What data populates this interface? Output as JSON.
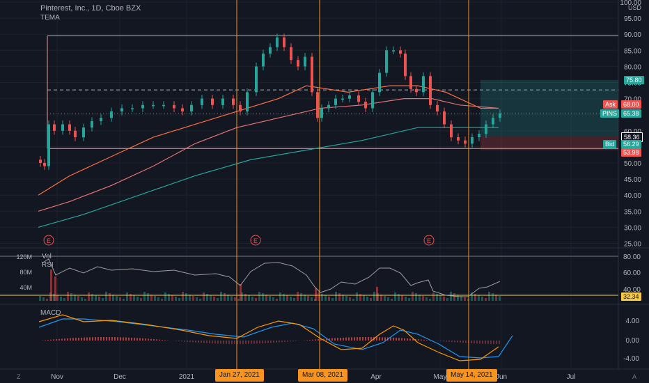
{
  "header": {
    "symbol_title": "Pinterest, Inc., 1D, Cboe BZX",
    "indicator": "TEMA"
  },
  "price_axis": {
    "currency": "USD",
    "ticks": [
      "100.00",
      "95.00",
      "90.00",
      "85.00",
      "80.00",
      "75.00",
      "70.00",
      "65.00",
      "60.00",
      "55.00",
      "50.00",
      "45.00",
      "40.00",
      "35.00",
      "30.00",
      "25.00"
    ],
    "tick_values": [
      100,
      95,
      90,
      85,
      80,
      75,
      70,
      65,
      60,
      55,
      50,
      45,
      40,
      35,
      30,
      25
    ]
  },
  "price_tags": {
    "target": "75.80",
    "ask": "Ask",
    "ask_value": "68.00",
    "pins": "PINS",
    "pins_value": "65.38",
    "stop": "58.36",
    "bid": "Bid",
    "bid_value": "56.29",
    "low": "53.98"
  },
  "volume_pane": {
    "label": "Vol",
    "ticks": [
      "120M",
      "80M",
      "40M"
    ]
  },
  "rsi_pane": {
    "label": "RSI",
    "ticks": [
      "80.00",
      "60.00",
      "40.00"
    ],
    "current_value": "32.34"
  },
  "macd_pane": {
    "label": "MACD",
    "ticks": [
      "4.00",
      "0.00",
      "-4.00"
    ]
  },
  "time_axis": {
    "labels": [
      "Nov",
      "Dec",
      "2021",
      "Apr",
      "May",
      "Jun",
      "Jul"
    ],
    "flags": [
      "Jan 27, 2021",
      "Mar 08, 2021",
      "May 14, 2021"
    ]
  },
  "earnings_markers": [
    "E",
    "E",
    "E"
  ],
  "corner_buttons": {
    "left": "Z",
    "right": "A"
  },
  "colors": {
    "bull": "#26a69a",
    "bear": "#ef5350",
    "vline": "#f7931e",
    "sma_fast": "#ff7043",
    "sma_slow": "#e57373",
    "sma_long": "#26a69a",
    "macd": "#2196f3",
    "signal": "#ff9800"
  }
}
